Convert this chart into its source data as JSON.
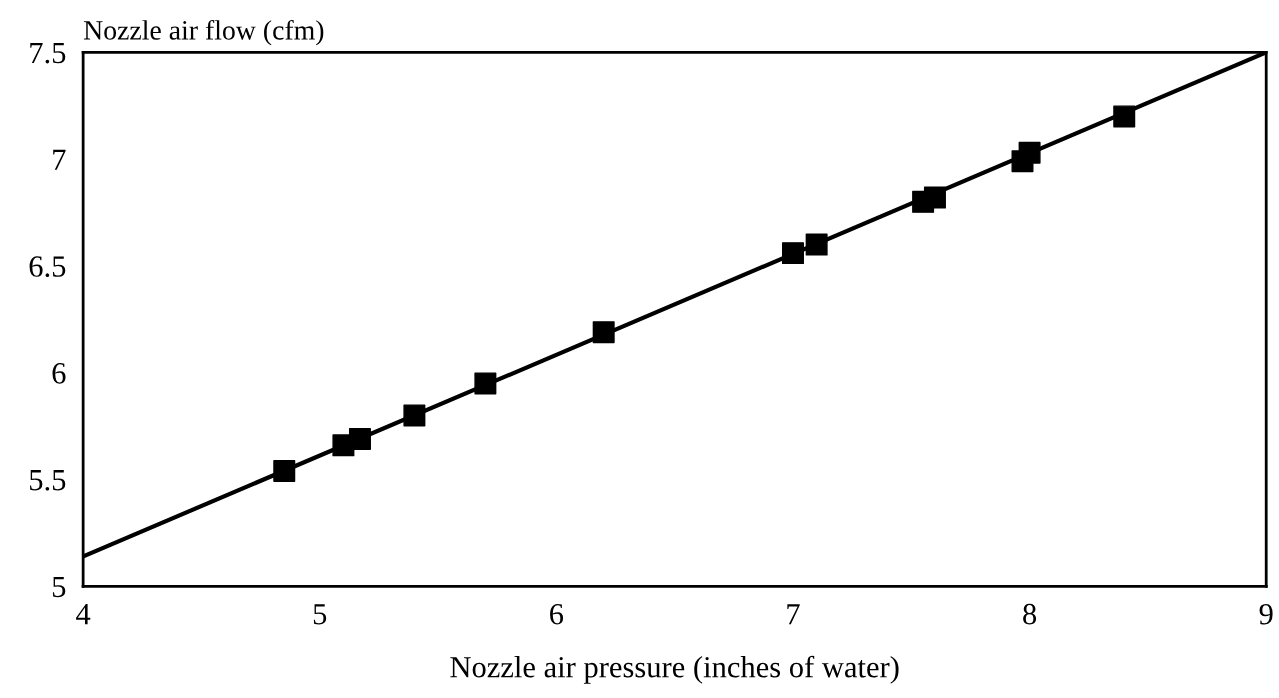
{
  "chart_data": {
    "type": "scatter",
    "xlabel": "Nozzle air pressure (inches of water)",
    "ylabel": "Nozzle air flow (cfm)",
    "xlim": [
      4,
      9
    ],
    "ylim": [
      5,
      7.5
    ],
    "xticks": [
      4,
      5,
      6,
      7,
      8,
      9
    ],
    "yticks": [
      5,
      5.5,
      6,
      6.5,
      7,
      7.5
    ],
    "grid": false,
    "legend": false,
    "series": [
      {
        "color": "#000000",
        "marker": "square",
        "x": [
          4.85,
          5.1,
          5.17,
          5.4,
          5.7,
          6.2,
          7.0,
          7.1,
          7.55,
          7.6,
          7.97,
          8.0,
          8.4
        ],
        "values": [
          5.54,
          5.66,
          5.69,
          5.8,
          5.95,
          6.19,
          6.56,
          6.6,
          6.8,
          6.82,
          6.99,
          7.03,
          7.2
        ]
      },
      {
        "type": "line",
        "color": "#000000",
        "marker": "none",
        "line_style": "solid",
        "x": [
          4,
          9
        ],
        "values": [
          5.14,
          7.5
        ]
      }
    ]
  }
}
